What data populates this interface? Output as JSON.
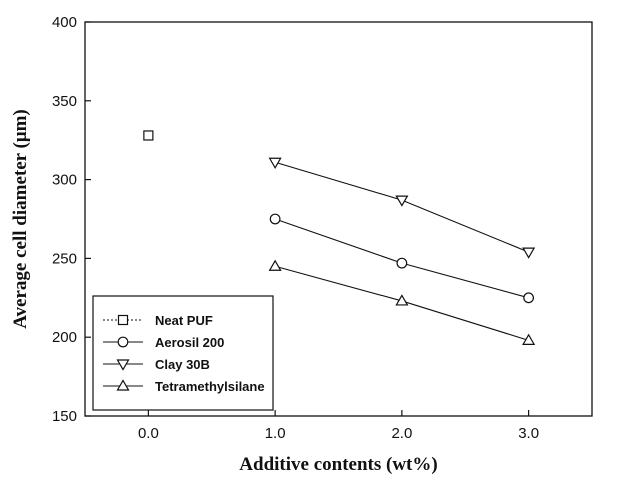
{
  "chart_data": {
    "type": "line",
    "title": "",
    "xlabel": "Additive contents (wt%)",
    "ylabel": "Average cell diameter (μm)",
    "xlim": [
      -0.5,
      3.5
    ],
    "ylim": [
      150,
      400
    ],
    "xticks": [
      "0.0",
      "1.0",
      "2.0",
      "3.0"
    ],
    "yticks": [
      "150",
      "200",
      "250",
      "300",
      "350",
      "400"
    ],
    "grid": false,
    "legend_position": "bottom-left",
    "series": [
      {
        "name": "Neat PUF",
        "marker": "square",
        "x": [
          0.0
        ],
        "y": [
          328
        ]
      },
      {
        "name": "Aerosil 200",
        "marker": "circle",
        "x": [
          1.0,
          2.0,
          3.0
        ],
        "y": [
          275,
          247,
          225
        ]
      },
      {
        "name": "Clay 30B",
        "marker": "triangle-down",
        "x": [
          1.0,
          2.0,
          3.0
        ],
        "y": [
          311,
          287,
          254
        ]
      },
      {
        "name": "Tetramethylsilane",
        "marker": "triangle-up",
        "x": [
          1.0,
          2.0,
          3.0
        ],
        "y": [
          245,
          223,
          198
        ]
      }
    ]
  }
}
